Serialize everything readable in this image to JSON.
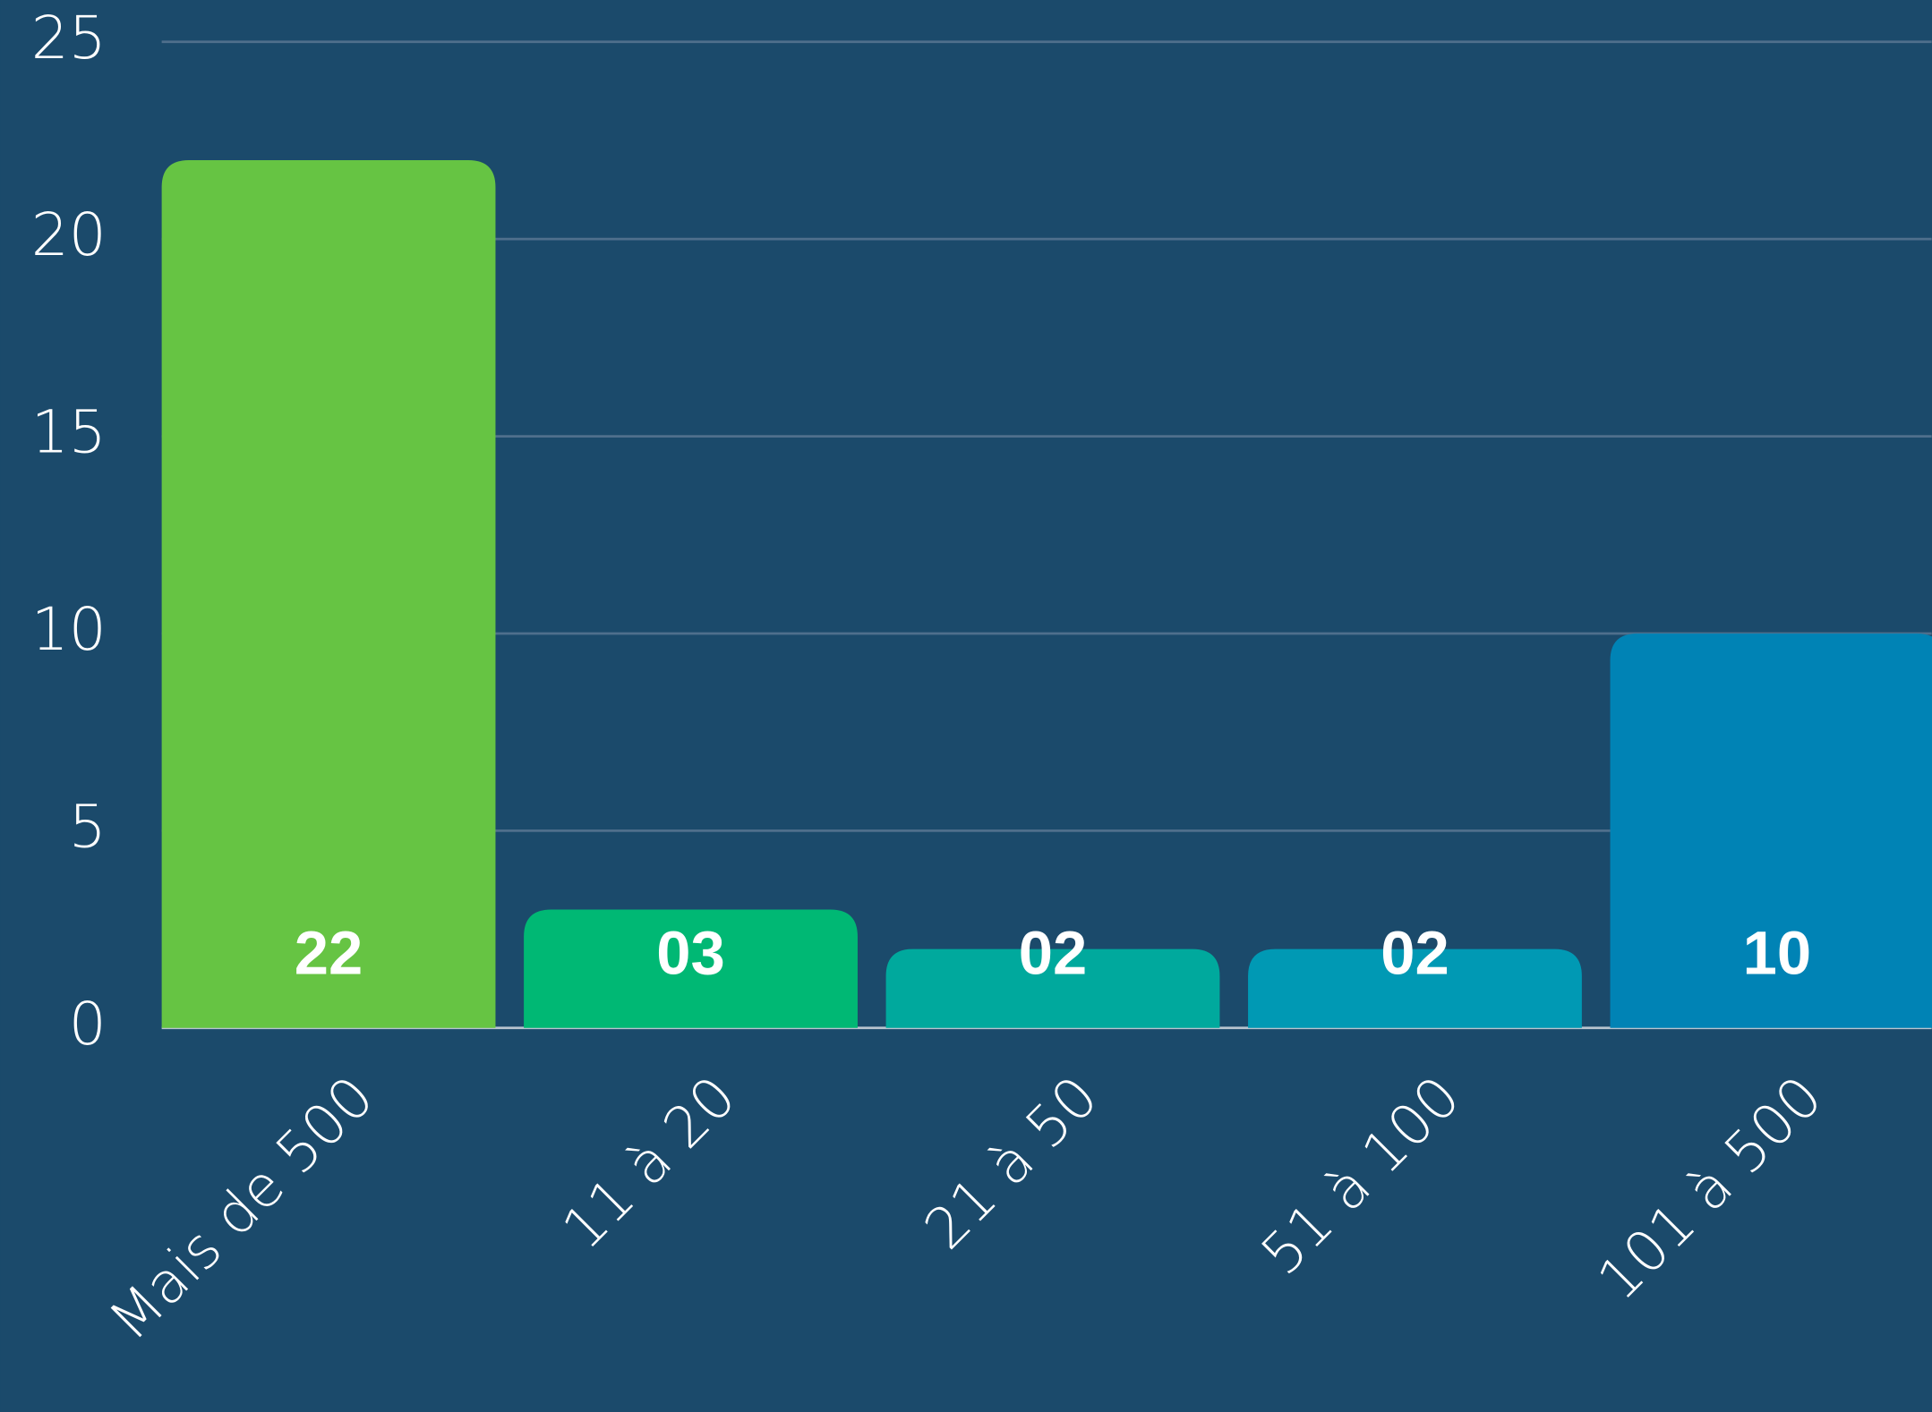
{
  "chart_data": {
    "type": "bar",
    "categories": [
      "Mais de 500",
      "11 à 20",
      "21 à 50",
      "51 à 100",
      "101 à 500"
    ],
    "values": [
      22,
      3,
      2,
      2,
      10
    ],
    "value_labels": [
      "22",
      "03",
      "02",
      "02",
      "10"
    ],
    "colors": [
      "#66c443",
      "#00b874",
      "#00a99d",
      "#0099b4",
      "#0083b5"
    ],
    "ylim": [
      0,
      25
    ],
    "yticks": [
      0,
      5,
      10,
      15,
      20,
      25
    ],
    "grid": true
  }
}
